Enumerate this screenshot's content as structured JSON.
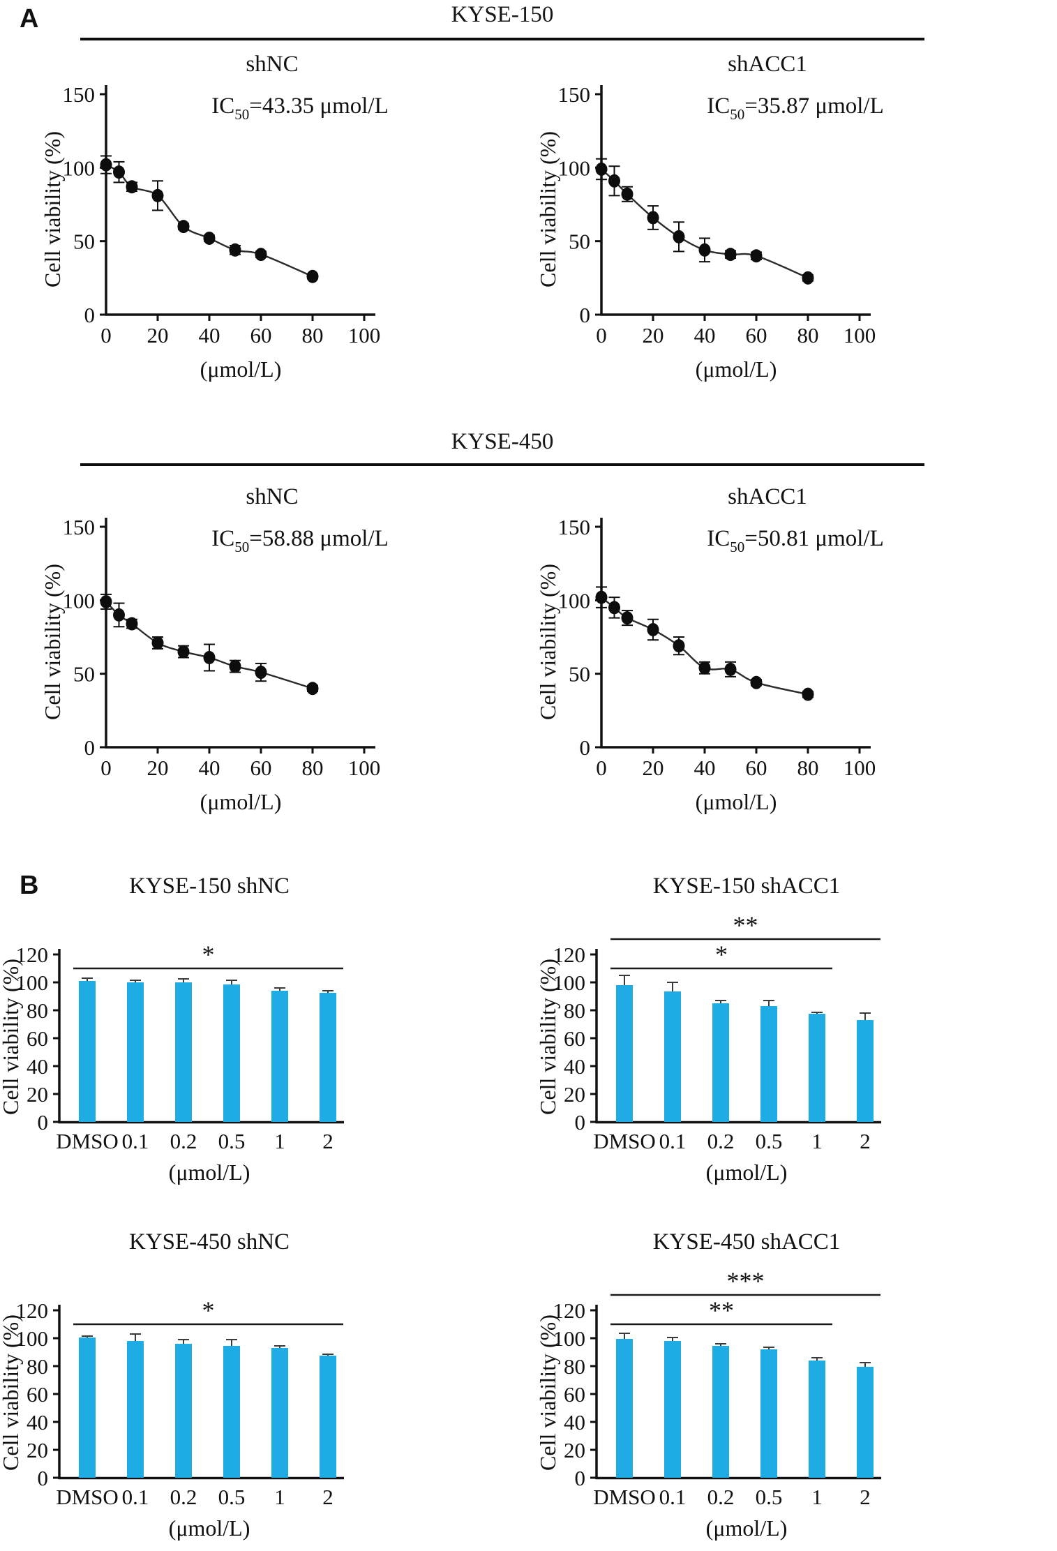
{
  "panel_a": {
    "label": "A",
    "group_titles": [
      "KYSE-150",
      "KYSE-450"
    ]
  },
  "panel_b": {
    "label": "B"
  },
  "colors": {
    "bar": "#1FACE4",
    "point": "#0d0d0d",
    "curve": "#2b2b2b",
    "axis": "#111111",
    "error": "#3a3a3a",
    "sig_line": "#1a1a1a"
  },
  "chart_data": [
    {
      "type": "scatter",
      "title": "shNC",
      "ic50": {
        "main": "IC",
        "sub": "50",
        "rest": "=43.35 μmol/L"
      },
      "ylabel": "Cell viability (%)",
      "xlabel": "(μmol/L)",
      "xlim": [
        0,
        100
      ],
      "ylim": [
        0,
        150
      ],
      "xticks": [
        0,
        20,
        40,
        60,
        80,
        100
      ],
      "yticks": [
        0,
        50,
        100,
        150
      ],
      "x": [
        0,
        5,
        10,
        20,
        30,
        40,
        50,
        60,
        80
      ],
      "y": [
        102,
        97,
        87,
        81,
        60,
        52,
        44,
        41,
        26
      ],
      "yerr": [
        6,
        7,
        3,
        10,
        2,
        2,
        3,
        2,
        1.5
      ]
    },
    {
      "type": "scatter",
      "title": "shACC1",
      "ic50": {
        "main": "IC",
        "sub": "50",
        "rest": "=35.87 μmol/L"
      },
      "ylabel": "Cell viability (%)",
      "xlabel": "(μmol/L)",
      "xlim": [
        0,
        100
      ],
      "ylim": [
        0,
        150
      ],
      "xticks": [
        0,
        20,
        40,
        60,
        80,
        100
      ],
      "yticks": [
        0,
        50,
        100,
        150
      ],
      "x": [
        0,
        5,
        10,
        20,
        30,
        40,
        50,
        60,
        80
      ],
      "y": [
        99,
        91,
        82,
        66,
        53,
        44,
        41,
        40,
        25
      ],
      "yerr": [
        7,
        10,
        5,
        8,
        10,
        8,
        2.5,
        2.5,
        2
      ]
    },
    {
      "type": "scatter",
      "title": "shNC",
      "ic50": {
        "main": "IC",
        "sub": "50",
        "rest": "=58.88 μmol/L"
      },
      "ylabel": "Cell viability (%)",
      "xlabel": "(μmol/L)",
      "xlim": [
        0,
        100
      ],
      "ylim": [
        0,
        150
      ],
      "xticks": [
        0,
        20,
        40,
        60,
        80,
        100
      ],
      "yticks": [
        0,
        50,
        100,
        150
      ],
      "x": [
        0,
        5,
        10,
        20,
        30,
        40,
        50,
        60,
        80
      ],
      "y": [
        99,
        90,
        84,
        71,
        65,
        61,
        55,
        51,
        40
      ],
      "yerr": [
        5,
        8,
        3,
        4,
        4,
        9,
        4,
        6,
        2
      ]
    },
    {
      "type": "scatter",
      "title": "shACC1",
      "ic50": {
        "main": "IC",
        "sub": "50",
        "rest": "=50.81 μmol/L"
      },
      "ylabel": "Cell viability (%)",
      "xlabel": "(μmol/L)",
      "xlim": [
        0,
        100
      ],
      "ylim": [
        0,
        150
      ],
      "xticks": [
        0,
        20,
        40,
        60,
        80,
        100
      ],
      "yticks": [
        0,
        50,
        100,
        150
      ],
      "x": [
        0,
        5,
        10,
        20,
        30,
        40,
        50,
        60,
        80
      ],
      "y": [
        102,
        95,
        88,
        80,
        69,
        54,
        53,
        44,
        36
      ],
      "yerr": [
        7,
        7,
        5,
        7,
        6,
        4,
        5,
        2,
        2
      ]
    },
    {
      "type": "bar",
      "title": "KYSE-150 shNC",
      "ylabel": "Cell viability (%)",
      "xlabel": "(μmol/L)",
      "ylim": [
        0,
        120
      ],
      "yticks": [
        0,
        20,
        40,
        60,
        80,
        100,
        120
      ],
      "categories": [
        "DMSO",
        "0.1",
        "0.2",
        "0.5",
        "1",
        "2"
      ],
      "values": [
        101,
        100,
        100,
        98.5,
        94,
        92.5
      ],
      "errors": [
        2,
        1.5,
        2.5,
        3,
        2,
        1.5
      ],
      "significance": [
        {
          "from": 0,
          "to": 5,
          "label": "*",
          "level": 0
        }
      ]
    },
    {
      "type": "bar",
      "title": "KYSE-150 shACC1",
      "ylabel": "Cell viability (%)",
      "xlabel": "(μmol/L)",
      "ylim": [
        0,
        120
      ],
      "yticks": [
        0,
        20,
        40,
        60,
        80,
        100,
        120
      ],
      "categories": [
        "DMSO",
        "0.1",
        "0.2",
        "0.5",
        "1",
        "2"
      ],
      "values": [
        98,
        93.5,
        85,
        83,
        77.5,
        73
      ],
      "errors": [
        7,
        6.5,
        2,
        4,
        1,
        5
      ],
      "significance": [
        {
          "from": 0,
          "to": 4,
          "label": "*",
          "level": 0
        },
        {
          "from": 0,
          "to": 5,
          "label": "**",
          "level": 1
        }
      ]
    },
    {
      "type": "bar",
      "title": "KYSE-450 shNC",
      "ylabel": "Cell viability (%)",
      "xlabel": "(μmol/L)",
      "ylim": [
        0,
        120
      ],
      "yticks": [
        0,
        20,
        40,
        60,
        80,
        100,
        120
      ],
      "categories": [
        "DMSO",
        "0.1",
        "0.2",
        "0.5",
        "1",
        "2"
      ],
      "values": [
        100.5,
        98,
        96,
        94.5,
        93,
        87.5
      ],
      "errors": [
        1,
        5,
        3,
        4.5,
        1.5,
        1
      ],
      "significance": [
        {
          "from": 0,
          "to": 5,
          "label": "*",
          "level": 0
        }
      ]
    },
    {
      "type": "bar",
      "title": "KYSE-450 shACC1",
      "ylabel": "Cell viability (%)",
      "xlabel": "(μmol/L)",
      "ylim": [
        0,
        120
      ],
      "yticks": [
        0,
        20,
        40,
        60,
        80,
        100,
        120
      ],
      "categories": [
        "DMSO",
        "0.1",
        "0.2",
        "0.5",
        "1",
        "2"
      ],
      "values": [
        99.5,
        98,
        94.5,
        92,
        84,
        79.5
      ],
      "errors": [
        4,
        2.5,
        1.5,
        1.5,
        2,
        3
      ],
      "significance": [
        {
          "from": 0,
          "to": 4,
          "label": "**",
          "level": 0
        },
        {
          "from": 0,
          "to": 5,
          "label": "***",
          "level": 1
        }
      ]
    }
  ]
}
